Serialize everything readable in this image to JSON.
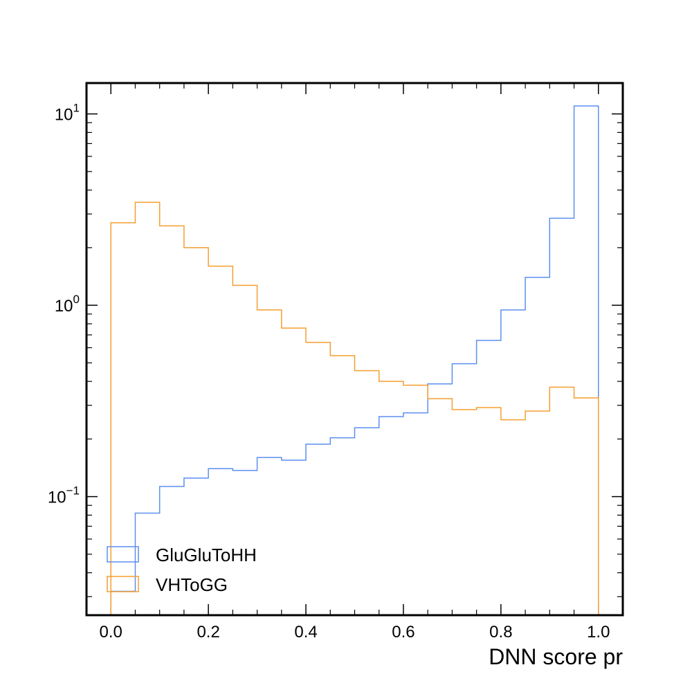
{
  "chart_data": {
    "type": "histogram-step",
    "xlabel": "DNN score pr",
    "ylabel": "",
    "title": "",
    "xlim": [
      -0.05,
      1.05
    ],
    "ylim": [
      0.024,
      14.5
    ],
    "yscale": "log",
    "grid": false,
    "legend_position": "lower-left",
    "bin_edges": [
      0.0,
      0.05,
      0.1,
      0.15,
      0.2,
      0.25,
      0.3,
      0.35,
      0.4,
      0.45,
      0.5,
      0.55,
      0.6,
      0.65,
      0.7,
      0.75,
      0.8,
      0.85,
      0.9,
      0.95,
      1.0
    ],
    "x_ticks": [
      {
        "value": 0.0,
        "label": "0.0"
      },
      {
        "value": 0.2,
        "label": "0.2"
      },
      {
        "value": 0.4,
        "label": "0.4"
      },
      {
        "value": 0.6,
        "label": "0.6"
      },
      {
        "value": 0.8,
        "label": "0.8"
      },
      {
        "value": 1.0,
        "label": "1.0"
      }
    ],
    "y_ticks": [
      {
        "value": 0.1,
        "base": "10",
        "exp": "−1"
      },
      {
        "value": 1,
        "base": "10",
        "exp": "0"
      },
      {
        "value": 10,
        "base": "10",
        "exp": "1"
      }
    ],
    "series": [
      {
        "name": "GluGluToHH",
        "color": "#5b8ff0",
        "values": [
          0.032,
          0.082,
          0.113,
          0.125,
          0.14,
          0.137,
          0.16,
          0.155,
          0.188,
          0.203,
          0.229,
          0.262,
          0.274,
          0.388,
          0.495,
          0.655,
          0.945,
          1.4,
          2.85,
          11.0
        ]
      },
      {
        "name": "VHToGG",
        "color": "#f59e2f",
        "values": [
          2.7,
          3.45,
          2.6,
          2.0,
          1.6,
          1.27,
          0.945,
          0.76,
          0.64,
          0.545,
          0.455,
          0.4,
          0.382,
          0.325,
          0.285,
          0.292,
          0.252,
          0.28,
          0.373,
          0.328
        ]
      }
    ]
  }
}
